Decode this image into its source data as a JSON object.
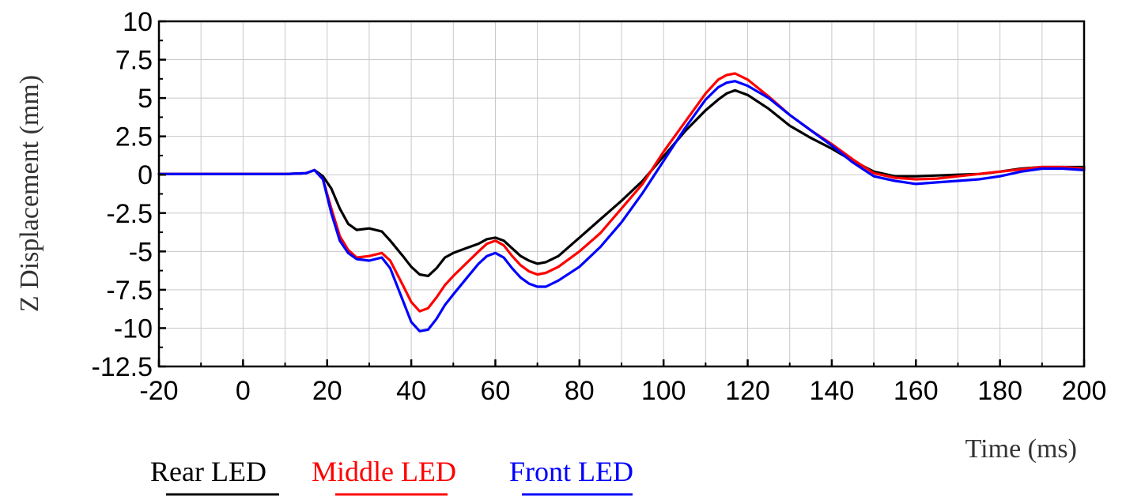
{
  "chart_data": {
    "type": "line",
    "title": "",
    "xlabel": "Time (ms)",
    "ylabel": "Z Displacement (mm)",
    "xlim": [
      -20,
      200
    ],
    "ylim": [
      -12.5,
      10
    ],
    "xticks": [
      -20,
      0,
      20,
      40,
      60,
      80,
      100,
      120,
      140,
      160,
      180,
      200
    ],
    "yticks": [
      -12.5,
      -10,
      -7.5,
      -5,
      -2.5,
      0,
      2.5,
      5,
      7.5,
      10
    ],
    "ytick_labels": [
      "-12.5",
      "-10",
      "-7.5",
      "-5",
      "-2.5",
      "0",
      "2.5",
      "5",
      "7.5",
      "10"
    ],
    "grid": true,
    "legend_position": "bottom-left",
    "series": [
      {
        "name": "Rear LED",
        "color": "#000000",
        "x": [
          -20,
          -10,
          0,
          10,
          15,
          17,
          19,
          21,
          23,
          25,
          27,
          30,
          33,
          35,
          38,
          40,
          42,
          44,
          46,
          48,
          50,
          53,
          56,
          58,
          60,
          62,
          64,
          66,
          68,
          70,
          72,
          75,
          80,
          85,
          90,
          95,
          100,
          105,
          110,
          113,
          115,
          117,
          120,
          125,
          130,
          135,
          140,
          145,
          150,
          155,
          160,
          165,
          170,
          175,
          180,
          185,
          190,
          195,
          200
        ],
        "y": [
          0.05,
          0.05,
          0.05,
          0.05,
          0.1,
          0.3,
          -0.1,
          -0.9,
          -2.2,
          -3.2,
          -3.6,
          -3.5,
          -3.7,
          -4.3,
          -5.3,
          -6.0,
          -6.5,
          -6.6,
          -6.1,
          -5.4,
          -5.1,
          -4.8,
          -4.5,
          -4.2,
          -4.1,
          -4.3,
          -4.8,
          -5.3,
          -5.6,
          -5.8,
          -5.7,
          -5.3,
          -4.1,
          -2.9,
          -1.7,
          -0.4,
          1.2,
          2.8,
          4.2,
          4.9,
          5.3,
          5.5,
          5.2,
          4.3,
          3.2,
          2.4,
          1.7,
          0.9,
          0.2,
          -0.1,
          -0.1,
          -0.05,
          0.0,
          0.05,
          0.2,
          0.4,
          0.5,
          0.5,
          0.5
        ]
      },
      {
        "name": "Middle LED",
        "color": "#ff0000",
        "x": [
          -20,
          -10,
          0,
          10,
          15,
          17,
          19,
          21,
          23,
          25,
          27,
          30,
          33,
          35,
          38,
          40,
          42,
          44,
          46,
          48,
          50,
          53,
          56,
          58,
          60,
          62,
          64,
          66,
          68,
          70,
          72,
          75,
          80,
          85,
          90,
          95,
          100,
          105,
          110,
          113,
          115,
          117,
          120,
          125,
          130,
          135,
          140,
          145,
          150,
          155,
          160,
          165,
          170,
          175,
          180,
          185,
          190,
          195,
          200
        ],
        "y": [
          0.05,
          0.05,
          0.05,
          0.05,
          0.1,
          0.3,
          -0.3,
          -2.2,
          -4.0,
          -4.9,
          -5.4,
          -5.3,
          -5.1,
          -5.6,
          -7.2,
          -8.3,
          -8.9,
          -8.7,
          -8.0,
          -7.2,
          -6.6,
          -5.8,
          -5.0,
          -4.5,
          -4.3,
          -4.6,
          -5.3,
          -5.9,
          -6.3,
          -6.5,
          -6.4,
          -6.0,
          -5.0,
          -3.8,
          -2.2,
          -0.6,
          1.5,
          3.4,
          5.3,
          6.2,
          6.5,
          6.6,
          6.2,
          5.1,
          3.9,
          2.9,
          2.0,
          1.0,
          0.1,
          -0.2,
          -0.3,
          -0.25,
          -0.1,
          0.05,
          0.2,
          0.35,
          0.5,
          0.5,
          0.4
        ]
      },
      {
        "name": "Front LED",
        "color": "#0000ff",
        "x": [
          -20,
          -10,
          0,
          10,
          15,
          17,
          19,
          21,
          23,
          25,
          27,
          30,
          33,
          35,
          38,
          40,
          42,
          44,
          46,
          48,
          50,
          53,
          56,
          58,
          60,
          62,
          64,
          66,
          68,
          70,
          72,
          75,
          80,
          85,
          90,
          95,
          100,
          105,
          110,
          113,
          115,
          117,
          120,
          125,
          130,
          135,
          140,
          145,
          150,
          155,
          160,
          165,
          170,
          175,
          180,
          185,
          190,
          195,
          200
        ],
        "y": [
          0.05,
          0.05,
          0.05,
          0.05,
          0.1,
          0.3,
          -0.3,
          -2.5,
          -4.3,
          -5.1,
          -5.5,
          -5.6,
          -5.4,
          -6.1,
          -8.2,
          -9.6,
          -10.2,
          -10.1,
          -9.4,
          -8.5,
          -7.8,
          -6.8,
          -5.8,
          -5.3,
          -5.1,
          -5.4,
          -6.1,
          -6.7,
          -7.1,
          -7.3,
          -7.3,
          -6.9,
          -6.0,
          -4.7,
          -3.1,
          -1.2,
          0.9,
          3.0,
          4.9,
          5.7,
          6.0,
          6.1,
          5.8,
          5.0,
          3.9,
          2.9,
          1.9,
          0.8,
          -0.1,
          -0.4,
          -0.6,
          -0.5,
          -0.4,
          -0.3,
          -0.1,
          0.2,
          0.4,
          0.4,
          0.3
        ]
      }
    ]
  }
}
